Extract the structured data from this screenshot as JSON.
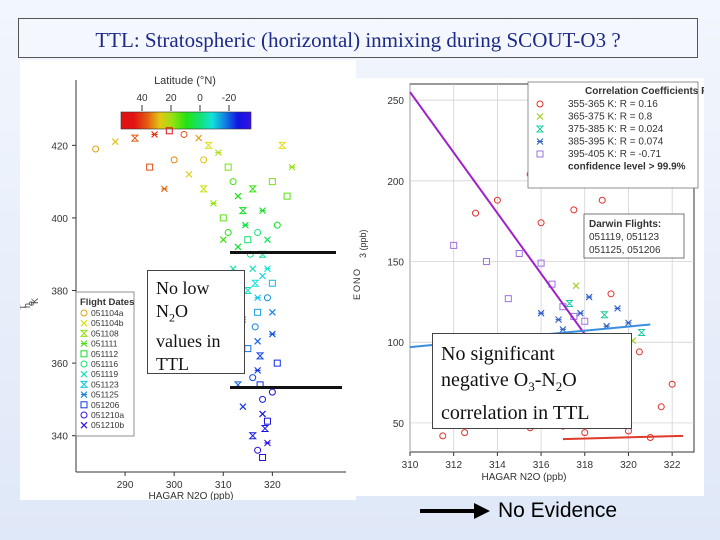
{
  "slide": {
    "title": "TTL:  Stratospheric (horizontal) inmixing during SCOUT-O3 ?",
    "callout_left": {
      "line1": "No low",
      "line2_main": "N",
      "line2_sub": "2",
      "line2_tail": "O",
      "line3": "values in",
      "line4": "TTL"
    },
    "callout_right": {
      "line1": "No significant",
      "line2_a": "negative O",
      "line2_sub1": "3",
      "line2_b": "-N",
      "line2_sub2": "2",
      "line2_c": "O",
      "line3": "correlation in TTL"
    },
    "footer": "No Evidence"
  },
  "colors": {
    "title": "#1c2a8a",
    "purple_line": "#a020c8",
    "blue_line": "#3a8ee0",
    "red_line": "#e03a2a"
  },
  "chart_data": [
    {
      "type": "scatter",
      "xlabel": "HAGAR N2O (ppb)",
      "ylabel_fragments": [
        "T",
        "h",
        "e",
        "K"
      ],
      "xlim": [
        280,
        335
      ],
      "ylim": [
        330,
        438
      ],
      "xticks": [
        "290",
        "300",
        "310",
        "320"
      ],
      "yticks": [
        "340",
        "360",
        "380",
        "400",
        "420"
      ],
      "colorbar": {
        "title": "Latitude (°N)",
        "ticks": [
          "40",
          "20",
          "0",
          "-20"
        ]
      },
      "legend": {
        "title": "Flight Dates",
        "entries": [
          "051104a",
          "051104b",
          "051108",
          "051111",
          "051112",
          "051116",
          "051119",
          "051123",
          "051125",
          "051206",
          "05121",
          "05121"
        ],
        "entry_suffix": [
          "",
          "",
          "",
          "",
          "",
          "",
          "",
          "",
          "",
          "",
          "0a",
          "0b"
        ]
      },
      "points": [
        {
          "x": 284,
          "y": 419,
          "lat": 30
        },
        {
          "x": 288,
          "y": 421,
          "lat": 28
        },
        {
          "x": 292,
          "y": 422,
          "lat": 35
        },
        {
          "x": 296,
          "y": 423,
          "lat": 38
        },
        {
          "x": 299,
          "y": 424,
          "lat": 40
        },
        {
          "x": 302,
          "y": 423,
          "lat": 36
        },
        {
          "x": 305,
          "y": 422,
          "lat": 30
        },
        {
          "x": 307,
          "y": 420,
          "lat": 25
        },
        {
          "x": 309,
          "y": 418,
          "lat": 22
        },
        {
          "x": 311,
          "y": 414,
          "lat": 18
        },
        {
          "x": 312,
          "y": 410,
          "lat": 15
        },
        {
          "x": 313,
          "y": 406,
          "lat": 12
        },
        {
          "x": 314,
          "y": 402,
          "lat": 10
        },
        {
          "x": 314.5,
          "y": 398,
          "lat": 8
        },
        {
          "x": 315,
          "y": 394,
          "lat": 5
        },
        {
          "x": 315.5,
          "y": 390,
          "lat": 3
        },
        {
          "x": 316,
          "y": 386,
          "lat": 0
        },
        {
          "x": 316.5,
          "y": 382,
          "lat": -3
        },
        {
          "x": 317,
          "y": 378,
          "lat": -5
        },
        {
          "x": 317,
          "y": 374,
          "lat": -8
        },
        {
          "x": 316.5,
          "y": 370,
          "lat": -10
        },
        {
          "x": 317,
          "y": 366,
          "lat": -12
        },
        {
          "x": 317.5,
          "y": 362,
          "lat": -14
        },
        {
          "x": 317,
          "y": 358,
          "lat": -15
        },
        {
          "x": 317.5,
          "y": 354,
          "lat": -16
        },
        {
          "x": 318,
          "y": 350,
          "lat": -17
        },
        {
          "x": 318,
          "y": 346,
          "lat": -18
        },
        {
          "x": 318.5,
          "y": 342,
          "lat": -18
        },
        {
          "x": 319,
          "y": 338,
          "lat": -19
        },
        {
          "x": 318,
          "y": 334,
          "lat": -19
        },
        {
          "x": 300,
          "y": 416,
          "lat": 32
        },
        {
          "x": 303,
          "y": 412,
          "lat": 27
        },
        {
          "x": 306,
          "y": 408,
          "lat": 24
        },
        {
          "x": 308,
          "y": 404,
          "lat": 20
        },
        {
          "x": 310,
          "y": 400,
          "lat": 16
        },
        {
          "x": 311,
          "y": 396,
          "lat": 12
        },
        {
          "x": 313,
          "y": 392,
          "lat": 9
        },
        {
          "x": 318,
          "y": 390,
          "lat": 2
        },
        {
          "x": 319,
          "y": 386,
          "lat": -2
        },
        {
          "x": 320,
          "y": 382,
          "lat": -6
        },
        {
          "x": 319,
          "y": 378,
          "lat": -9
        },
        {
          "x": 318,
          "y": 384,
          "lat": -4
        },
        {
          "x": 315,
          "y": 380,
          "lat": -1
        },
        {
          "x": 314,
          "y": 372,
          "lat": -6
        },
        {
          "x": 315,
          "y": 364,
          "lat": -11
        },
        {
          "x": 316,
          "y": 356,
          "lat": -14
        },
        {
          "x": 314,
          "y": 348,
          "lat": -15
        },
        {
          "x": 316,
          "y": 340,
          "lat": -17
        },
        {
          "x": 320,
          "y": 368,
          "lat": -13
        },
        {
          "x": 321,
          "y": 360,
          "lat": -16
        },
        {
          "x": 320,
          "y": 352,
          "lat": -18
        },
        {
          "x": 312,
          "y": 362,
          "lat": -8
        },
        {
          "x": 313,
          "y": 354,
          "lat": -12
        },
        {
          "x": 298,
          "y": 408,
          "lat": 34
        },
        {
          "x": 295,
          "y": 414,
          "lat": 36
        },
        {
          "x": 306,
          "y": 416,
          "lat": 28
        },
        {
          "x": 310,
          "y": 394,
          "lat": 14
        },
        {
          "x": 322,
          "y": 420,
          "lat": 26
        },
        {
          "x": 324,
          "y": 414,
          "lat": 20
        },
        {
          "x": 323,
          "y": 406,
          "lat": 16
        },
        {
          "x": 321,
          "y": 398,
          "lat": 10
        },
        {
          "x": 319,
          "y": 394,
          "lat": 6
        },
        {
          "x": 316,
          "y": 408,
          "lat": 14
        },
        {
          "x": 318,
          "y": 402,
          "lat": 10
        },
        {
          "x": 320,
          "y": 410,
          "lat": 18
        },
        {
          "x": 317,
          "y": 396,
          "lat": 4
        },
        {
          "x": 312,
          "y": 386,
          "lat": 2
        },
        {
          "x": 311,
          "y": 376,
          "lat": -3
        },
        {
          "x": 310,
          "y": 366,
          "lat": -6
        },
        {
          "x": 319,
          "y": 344,
          "lat": -18
        },
        {
          "x": 317,
          "y": 336,
          "lat": -19
        },
        {
          "x": 320,
          "y": 374,
          "lat": -10
        }
      ]
    },
    {
      "type": "scatter",
      "xlabel": "HAGAR N2O (ppb)",
      "ylabel_fragments": [
        "3 (ppb)",
        "E",
        "O",
        "N",
        "O"
      ],
      "xlim": [
        310,
        323
      ],
      "ylim": [
        32,
        260
      ],
      "xticks": [
        "310",
        "312",
        "314",
        "316",
        "318",
        "320",
        "322"
      ],
      "yticks": [
        "50",
        "100",
        "150",
        "200",
        "250"
      ],
      "legend": {
        "title": "Correlation Coefficients R:",
        "entries": [
          "355-365 K: R = 0.16",
          "365-375 K: R = 0.8",
          "375-385 K: R = 0.024",
          "385-395 K: R = 0.074",
          "395-405 K: R = -0.71",
          "confidence level > 99.9%"
        ]
      },
      "flights_box": {
        "title": "Darwin Flights:",
        "line1": "051119, 051123",
        "line2": "051125, 051206"
      },
      "fit_lines": [
        {
          "name": "395-405 K",
          "from": [
            310,
            255
          ],
          "to": [
            318,
            105
          ]
        },
        {
          "name": "385-395 K",
          "from": [
            310,
            97
          ],
          "to": [
            321,
            111
          ]
        },
        {
          "name": "355-365 K",
          "from": [
            317,
            40
          ],
          "to": [
            322.5,
            42
          ]
        }
      ],
      "points": [
        {
          "x": 312,
          "y": 160,
          "s": 4
        },
        {
          "x": 313.5,
          "y": 150,
          "s": 4
        },
        {
          "x": 314.5,
          "y": 127,
          "s": 4
        },
        {
          "x": 315,
          "y": 155,
          "s": 4
        },
        {
          "x": 316,
          "y": 149,
          "s": 4
        },
        {
          "x": 316.5,
          "y": 136,
          "s": 4
        },
        {
          "x": 317,
          "y": 122,
          "s": 4
        },
        {
          "x": 317.5,
          "y": 116,
          "s": 4
        },
        {
          "x": 318,
          "y": 113,
          "s": 4
        },
        {
          "x": 316,
          "y": 118,
          "s": 3
        },
        {
          "x": 317,
          "y": 108,
          "s": 3
        },
        {
          "x": 318.5,
          "y": 102,
          "s": 3
        },
        {
          "x": 319,
          "y": 110,
          "s": 3
        },
        {
          "x": 319.5,
          "y": 121,
          "s": 3
        },
        {
          "x": 320,
          "y": 112,
          "s": 3
        },
        {
          "x": 318.2,
          "y": 128,
          "s": 3
        },
        {
          "x": 317.8,
          "y": 118,
          "s": 3
        },
        {
          "x": 316.8,
          "y": 114,
          "s": 3
        },
        {
          "x": 315.5,
          "y": 204,
          "s": 0
        },
        {
          "x": 316.5,
          "y": 232,
          "s": 0
        },
        {
          "x": 317,
          "y": 216,
          "s": 0
        },
        {
          "x": 318,
          "y": 210,
          "s": 0
        },
        {
          "x": 318.8,
          "y": 188,
          "s": 0
        },
        {
          "x": 317.5,
          "y": 182,
          "s": 0
        },
        {
          "x": 316,
          "y": 174,
          "s": 0
        },
        {
          "x": 314,
          "y": 188,
          "s": 0
        },
        {
          "x": 313,
          "y": 180,
          "s": 0
        },
        {
          "x": 315,
          "y": 92,
          "s": 0
        },
        {
          "x": 314,
          "y": 82,
          "s": 0
        },
        {
          "x": 316,
          "y": 72,
          "s": 0
        },
        {
          "x": 316.5,
          "y": 58,
          "s": 0
        },
        {
          "x": 317,
          "y": 48,
          "s": 0
        },
        {
          "x": 318,
          "y": 44,
          "s": 0
        },
        {
          "x": 318.5,
          "y": 52,
          "s": 0
        },
        {
          "x": 319,
          "y": 63,
          "s": 0
        },
        {
          "x": 320,
          "y": 45,
          "s": 0
        },
        {
          "x": 321,
          "y": 41,
          "s": 0
        },
        {
          "x": 321.5,
          "y": 60,
          "s": 0
        },
        {
          "x": 322,
          "y": 74,
          "s": 0
        },
        {
          "x": 312.5,
          "y": 44,
          "s": 0
        },
        {
          "x": 313,
          "y": 66,
          "s": 0
        },
        {
          "x": 315.5,
          "y": 47,
          "s": 0
        },
        {
          "x": 311.5,
          "y": 42,
          "s": 0
        },
        {
          "x": 316.2,
          "y": 86,
          "s": 0
        },
        {
          "x": 317.2,
          "y": 92,
          "s": 0
        },
        {
          "x": 319.6,
          "y": 78,
          "s": 0
        },
        {
          "x": 320.5,
          "y": 94,
          "s": 0
        },
        {
          "x": 319.2,
          "y": 130,
          "s": 0
        },
        {
          "x": 317,
          "y": 100,
          "s": 1
        },
        {
          "x": 318,
          "y": 97,
          "s": 1
        },
        {
          "x": 319.3,
          "y": 100,
          "s": 1
        },
        {
          "x": 320.2,
          "y": 101,
          "s": 1
        },
        {
          "x": 317.6,
          "y": 135,
          "s": 1
        },
        {
          "x": 316.6,
          "y": 82,
          "s": 1
        },
        {
          "x": 318.4,
          "y": 94,
          "s": 2
        },
        {
          "x": 317.3,
          "y": 124,
          "s": 2
        },
        {
          "x": 319.7,
          "y": 88,
          "s": 2
        },
        {
          "x": 316.2,
          "y": 96,
          "s": 2
        },
        {
          "x": 320.6,
          "y": 106,
          "s": 2
        },
        {
          "x": 318.9,
          "y": 117,
          "s": 2
        }
      ]
    }
  ]
}
